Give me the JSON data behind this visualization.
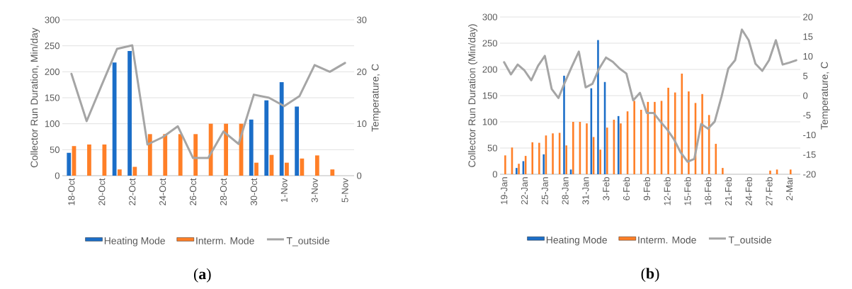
{
  "chart_data": [
    {
      "type": "bar",
      "ylabel": "Collector Run Duration, Min/day",
      "y2label": "Temperature, C",
      "categories": [
        "18-Oct",
        null,
        "20-Oct",
        null,
        "22-Oct",
        null,
        "24-Oct",
        null,
        "26-Oct",
        null,
        "28-Oct",
        null,
        "30-Oct",
        null,
        "1-Nov",
        null,
        "3-Nov",
        null,
        "5-Nov"
      ],
      "series": [
        {
          "name": "Heating Mode",
          "color": "#1b6ec8",
          "values": [
            44,
            null,
            null,
            218,
            240,
            null,
            null,
            null,
            null,
            null,
            null,
            null,
            108,
            145,
            180,
            133,
            null,
            null,
            null
          ]
        },
        {
          "name": "Interm. Mode",
          "color": "#ff7f27",
          "values": [
            57,
            60,
            60,
            12,
            17,
            80,
            80,
            80,
            80,
            100,
            100,
            100,
            25,
            40,
            25,
            33,
            39,
            12,
            null
          ]
        },
        {
          "name": "T_outside",
          "type": "line",
          "axis": "y2",
          "color": "#a5a5a5",
          "values": [
            19.6,
            10.5,
            17.5,
            24.4,
            25.1,
            6.0,
            7.4,
            9.5,
            3.4,
            3.4,
            8.5,
            6.1,
            15.6,
            15.0,
            13.4,
            15.3,
            21.3,
            20.0,
            21.7
          ]
        }
      ],
      "ylim": [
        0,
        300
      ],
      "yticks": [
        0,
        50,
        100,
        150,
        200,
        250,
        300
      ],
      "y2lim": [
        0,
        30
      ],
      "y2ticks": [
        0,
        10,
        20,
        30
      ],
      "grid": "y",
      "legend": "bottom",
      "annotations": [
        "(**a**)"
      ]
    },
    {
      "type": "bar",
      "ylabel": "Collector Run Duration (Min/day)",
      "y2label": "Temperature, C",
      "categories": [
        "19-Jan",
        null,
        null,
        "22-Jan",
        null,
        null,
        "25-Jan",
        null,
        null,
        "28-Jan",
        null,
        null,
        "31-Jan",
        null,
        null,
        "3-Feb",
        null,
        null,
        "6-Feb",
        null,
        null,
        "9-Feb",
        null,
        null,
        "12-Feb",
        null,
        null,
        "15-Feb",
        null,
        null,
        "18-Feb",
        null,
        null,
        "21-Feb",
        null,
        null,
        "24-Feb",
        null,
        null,
        "27-Feb",
        null,
        null,
        "2-Mar",
        null
      ],
      "series": [
        {
          "name": "Heating Mode",
          "color": "#1b6ec8",
          "values": [
            null,
            null,
            12,
            25,
            null,
            null,
            38,
            null,
            null,
            188,
            9,
            null,
            null,
            164,
            256,
            176,
            null,
            111,
            null,
            null,
            null,
            null,
            null,
            null,
            null,
            null,
            null,
            null,
            null,
            null,
            null,
            null,
            null,
            null,
            null,
            null,
            null,
            null,
            null,
            null,
            null,
            null,
            null,
            null
          ]
        },
        {
          "name": "Interm. Mode",
          "color": "#ff7f27",
          "values": [
            36,
            51,
            20,
            35,
            61,
            60,
            74,
            78,
            79,
            55,
            100,
            100,
            97,
            71,
            47,
            89,
            104,
            97,
            120,
            140,
            123,
            138,
            138,
            140,
            165,
            156,
            192,
            158,
            136,
            153,
            113,
            58,
            12,
            null,
            null,
            null,
            null,
            null,
            null,
            7,
            9,
            null,
            9,
            null
          ]
        },
        {
          "name": "T_outside",
          "type": "line",
          "axis": "y2",
          "color": "#a5a5a5",
          "values": [
            8.5,
            5.4,
            7.9,
            6.4,
            3.9,
            7.6,
            10.1,
            1.7,
            -0.6,
            3.6,
            7.5,
            11.2,
            2.1,
            3.0,
            6.9,
            9.7,
            8.6,
            6.9,
            5.6,
            -1.2,
            0.7,
            -4.4,
            -4.4,
            -6.6,
            -8.6,
            -11.1,
            -14.5,
            -16.8,
            -16.1,
            -7.2,
            -8.4,
            -6.6,
            -0.3,
            6.9,
            9.0,
            16.8,
            14.1,
            8.1,
            6.3,
            9.0,
            14.1,
            7.9,
            8.4,
            9.0
          ]
        }
      ],
      "ylim": [
        0,
        300
      ],
      "yticks": [
        0,
        50,
        100,
        150,
        200,
        250,
        300
      ],
      "y2lim": [
        -20,
        20
      ],
      "y2ticks": [
        -20,
        -15,
        -10,
        -5,
        0,
        5,
        10,
        15,
        20
      ],
      "grid": "y",
      "legend": "bottom",
      "annotations": [
        "(**b**)"
      ]
    }
  ]
}
